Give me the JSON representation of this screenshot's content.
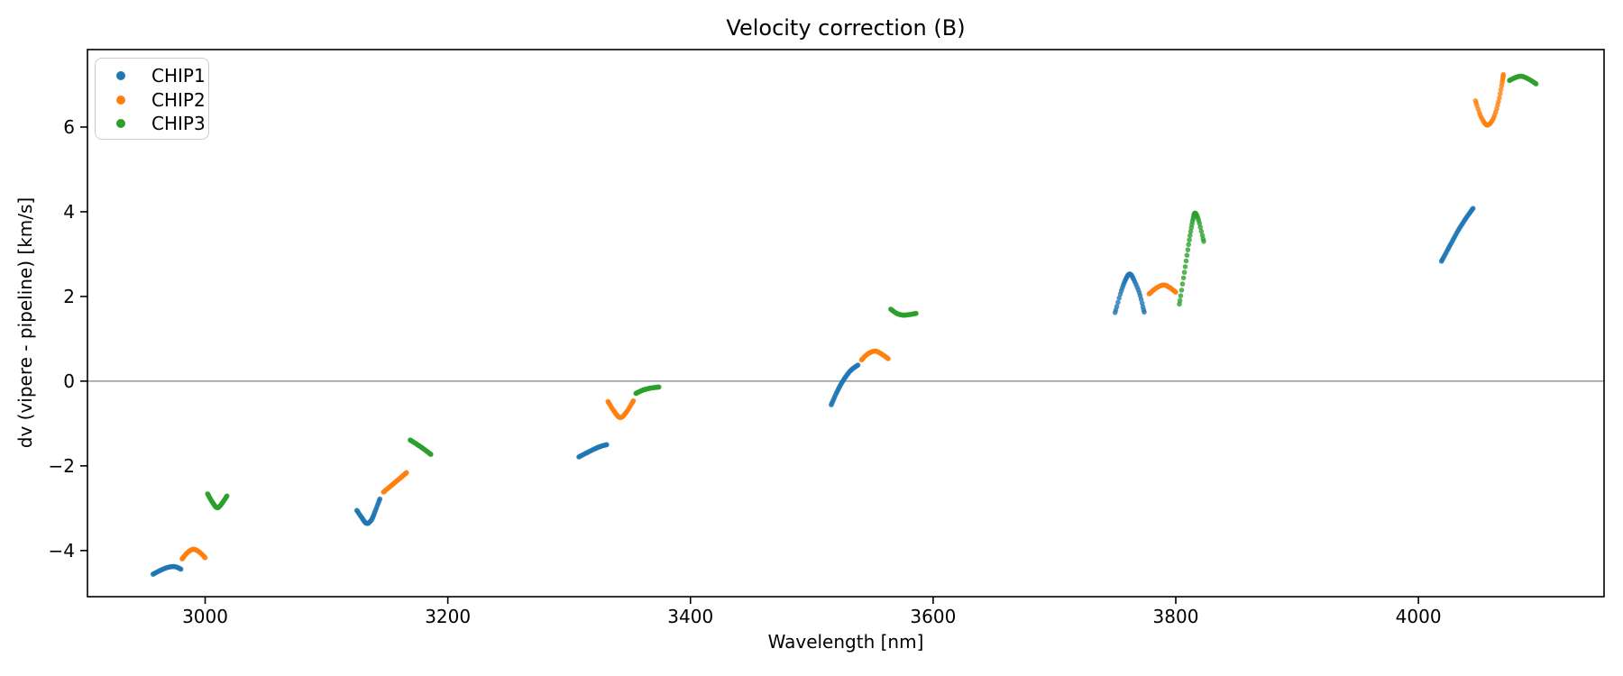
{
  "title": "Velocity correction (B)",
  "axes": {
    "xlabel": "Wavelength [nm]",
    "ylabel": "dv (vipere - pipeline) [km/s]",
    "xticks": [
      3000,
      3200,
      3400,
      3600,
      3800,
      4000
    ],
    "yticks": [
      -4,
      -2,
      0,
      2,
      4,
      6
    ],
    "zero_line": 0,
    "zero_line_color": "#808080",
    "spine_color": "#000000"
  },
  "legend": {
    "position": "upper left",
    "items": [
      {
        "label": "CHIP1",
        "color": "#1f77b4"
      },
      {
        "label": "CHIP2",
        "color": "#ff7f0e"
      },
      {
        "label": "CHIP3",
        "color": "#2ca02c"
      }
    ]
  },
  "chart_data": {
    "type": "scatter",
    "title": "Velocity correction (B)",
    "xlabel": "Wavelength [nm]",
    "ylabel": "dv (vipere - pipeline) [km/s]",
    "xlim": [
      2903,
      4153
    ],
    "ylim": [
      -5.09,
      7.83
    ],
    "grid": false,
    "legend_position": "upper left",
    "note": "Six spectral-order clusters; each order has three short smooth arc segments (one per chip). Segments are given as [wavelength_nm, dv_km_s] anchor points along each arc; dots are densely sampled along the arc.",
    "series": [
      {
        "name": "CHIP1",
        "color": "#1f77b4",
        "segments": [
          [
            [
              2957,
              -4.56
            ],
            [
              2963,
              -4.47
            ],
            [
              2969,
              -4.4
            ],
            [
              2975,
              -4.38
            ],
            [
              2980,
              -4.44
            ]
          ],
          [
            [
              3125,
              -3.05
            ],
            [
              3129,
              -3.22
            ],
            [
              3133,
              -3.36
            ],
            [
              3137,
              -3.28
            ],
            [
              3140,
              -3.08
            ],
            [
              3144,
              -2.78
            ]
          ],
          [
            [
              3308,
              -1.79
            ],
            [
              3314,
              -1.7
            ],
            [
              3321,
              -1.6
            ],
            [
              3326,
              -1.54
            ],
            [
              3331,
              -1.5
            ]
          ],
          [
            [
              3516,
              -0.56
            ],
            [
              3521,
              -0.24
            ],
            [
              3526,
              0.02
            ],
            [
              3532,
              0.25
            ],
            [
              3538,
              0.38
            ]
          ],
          [
            [
              3750,
              1.62
            ],
            [
              3755,
              2.12
            ],
            [
              3759,
              2.42
            ],
            [
              3762,
              2.53
            ],
            [
              3765,
              2.42
            ],
            [
              3770,
              2.08
            ],
            [
              3774,
              1.63
            ]
          ],
          [
            [
              4019,
              2.83
            ],
            [
              4025,
              3.15
            ],
            [
              4032,
              3.52
            ],
            [
              4039,
              3.84
            ],
            [
              4045,
              4.08
            ]
          ]
        ]
      },
      {
        "name": "CHIP2",
        "color": "#ff7f0e",
        "segments": [
          [
            [
              2981,
              -4.2
            ],
            [
              2985,
              -4.06
            ],
            [
              2990,
              -3.97
            ],
            [
              2995,
              -4.03
            ],
            [
              3000,
              -4.17
            ]
          ],
          [
            [
              3147,
              -2.62
            ],
            [
              3152,
              -2.5
            ],
            [
              3157,
              -2.38
            ],
            [
              3162,
              -2.26
            ],
            [
              3166,
              -2.16
            ]
          ],
          [
            [
              3332,
              -0.48
            ],
            [
              3337,
              -0.71
            ],
            [
              3342,
              -0.86
            ],
            [
              3347,
              -0.74
            ],
            [
              3353,
              -0.46
            ]
          ],
          [
            [
              3541,
              0.5
            ],
            [
              3546,
              0.64
            ],
            [
              3552,
              0.71
            ],
            [
              3557,
              0.65
            ],
            [
              3563,
              0.53
            ]
          ],
          [
            [
              3778,
              2.06
            ],
            [
              3784,
              2.2
            ],
            [
              3790,
              2.27
            ],
            [
              3795,
              2.21
            ],
            [
              3800,
              2.1
            ]
          ],
          [
            [
              4047,
              6.62
            ],
            [
              4051,
              6.28
            ],
            [
              4055,
              6.08
            ],
            [
              4058,
              6.06
            ],
            [
              4062,
              6.22
            ],
            [
              4066,
              6.6
            ],
            [
              4069,
              7.05
            ],
            [
              4070,
              7.24
            ]
          ]
        ]
      },
      {
        "name": "CHIP3",
        "color": "#2ca02c",
        "segments": [
          [
            [
              3002,
              -2.66
            ],
            [
              3006,
              -2.86
            ],
            [
              3010,
              -2.99
            ],
            [
              3014,
              -2.88
            ],
            [
              3018,
              -2.71
            ]
          ],
          [
            [
              3169,
              -1.39
            ],
            [
              3175,
              -1.5
            ],
            [
              3181,
              -1.62
            ],
            [
              3186,
              -1.73
            ]
          ],
          [
            [
              3355,
              -0.29
            ],
            [
              3361,
              -0.21
            ],
            [
              3368,
              -0.16
            ],
            [
              3374,
              -0.14
            ]
          ],
          [
            [
              3565,
              1.7
            ],
            [
              3570,
              1.6
            ],
            [
              3575,
              1.56
            ],
            [
              3580,
              1.57
            ],
            [
              3586,
              1.6
            ]
          ],
          [
            [
              3803,
              1.82
            ],
            [
              3807,
              2.55
            ],
            [
              3811,
              3.3
            ],
            [
              3814,
              3.8
            ],
            [
              3816,
              3.97
            ],
            [
              3819,
              3.78
            ],
            [
              3823,
              3.3
            ]
          ],
          [
            [
              4075,
              7.1
            ],
            [
              4080,
              7.17
            ],
            [
              4085,
              7.2
            ],
            [
              4091,
              7.13
            ],
            [
              4097,
              7.02
            ]
          ]
        ]
      }
    ]
  }
}
